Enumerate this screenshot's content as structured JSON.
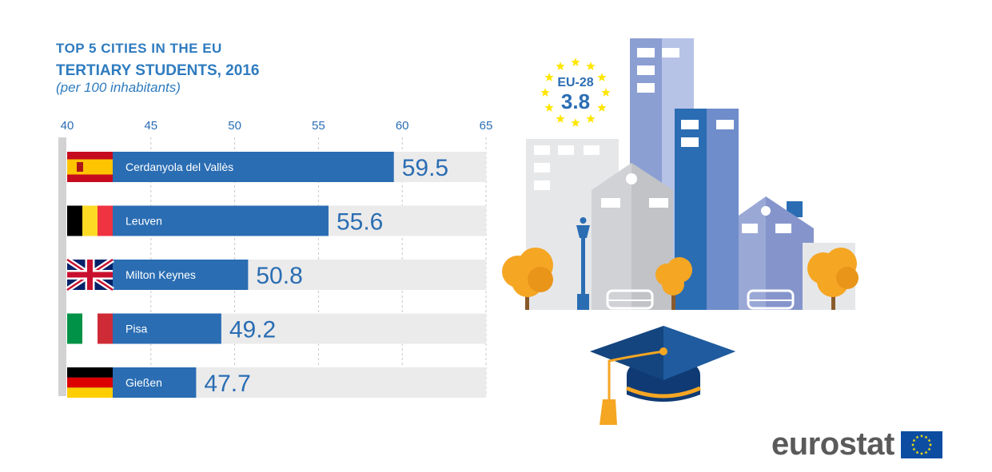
{
  "title": {
    "line1": "TOP 5 CITIES IN THE EU",
    "line2": "TERTIARY STUDENTS, 2016",
    "line3": "(per 100 inhabitants)"
  },
  "chart_data": {
    "type": "bar",
    "orientation": "horizontal",
    "categories": [
      "Cerdanyola del Vallès",
      "Leuven",
      "Milton Keynes",
      "Pisa",
      "Gießen"
    ],
    "values": [
      59.5,
      55.6,
      50.8,
      49.2,
      47.7
    ],
    "value_labels": [
      "59.5",
      "55.6",
      "50.8",
      "49.2",
      "47.7"
    ],
    "flags": [
      "spain",
      "belgium",
      "united-kingdom",
      "italy",
      "germany"
    ],
    "xlim": [
      40,
      65
    ],
    "xticks": [
      40,
      45,
      50,
      55,
      60,
      65
    ],
    "xtick_labels": [
      "40",
      "45",
      "50",
      "55",
      "60",
      "65"
    ],
    "grid": true,
    "bar_color": "#2a6db3",
    "track_color": "#ebebeb"
  },
  "badge": {
    "label": "EU-28",
    "value": "3.8"
  },
  "logo": {
    "text": "eurostat"
  },
  "colors": {
    "title": "#2e7bbf",
    "bar": "#2a6db3",
    "value_text": "#2a6db3",
    "eu_blue": "#0c4da2",
    "eu_star": "#ffe600",
    "tree": "#f5a623"
  }
}
